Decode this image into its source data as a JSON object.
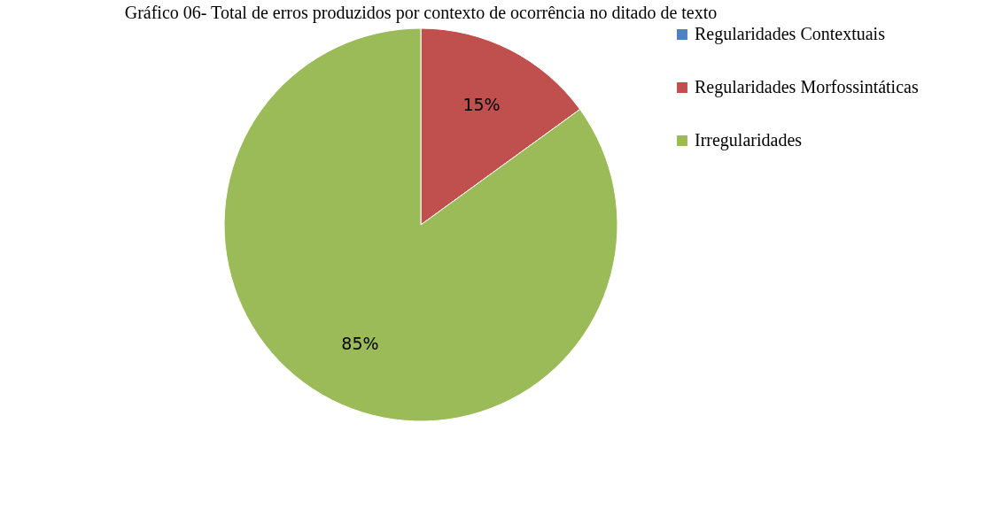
{
  "chart_data": {
    "type": "pie",
    "title": "Gráfico 06- Total de erros produzidos por contexto de ocorrência no ditado de texto",
    "categories": [
      "Regularidades Contextuais",
      "Regularidades Morfossintáticas",
      "Irregularidades"
    ],
    "values": [
      0,
      15,
      85
    ],
    "colors": [
      "#4f81bd",
      "#c0504d",
      "#9bbb59"
    ],
    "value_labels": [
      null,
      "15%",
      "85%"
    ],
    "legend": "right"
  }
}
